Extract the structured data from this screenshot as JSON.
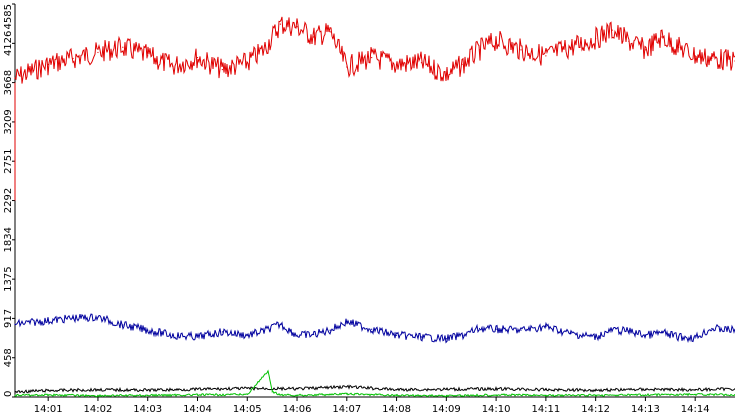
{
  "chart_data": {
    "type": "line",
    "title": "",
    "xlabel": "",
    "ylabel": "",
    "ylim": [
      0,
      4585
    ],
    "yticks": [
      "0",
      "458",
      "917",
      "1375",
      "1834",
      "2292",
      "2751",
      "3209",
      "3668",
      "4126",
      "4585"
    ],
    "xticks": [
      "14:01",
      "14:02",
      "14:03",
      "14:04",
      "14:05",
      "14:06",
      "14:07",
      "14:08",
      "14:09",
      "14:10",
      "14:11",
      "14:12",
      "14:13",
      "14:14"
    ],
    "xrange_minutes": [
      "14:00:20",
      "14:14:48"
    ],
    "grid": false,
    "legend": "none",
    "series": [
      {
        "color": "#e00000",
        "x": [
          "14:00:20",
          "14:01:00",
          "14:01:30",
          "14:02:00",
          "14:02:30",
          "14:03:00",
          "14:03:30",
          "14:04:00",
          "14:04:30",
          "14:05:00",
          "14:05:20",
          "14:05:40",
          "14:06:00",
          "14:06:20",
          "14:06:40",
          "14:07:00",
          "14:07:30",
          "14:08:00",
          "14:08:30",
          "14:09:00",
          "14:09:20",
          "14:09:40",
          "14:10:00",
          "14:10:30",
          "14:11:00",
          "14:11:30",
          "14:12:00",
          "14:12:20",
          "14:12:40",
          "14:13:00",
          "14:13:20",
          "14:13:40",
          "14:14:00",
          "14:14:20",
          "14:14:48"
        ],
        "values": [
          3720,
          3880,
          3950,
          4020,
          4080,
          3980,
          3860,
          3960,
          3820,
          3900,
          4050,
          4350,
          4320,
          4200,
          4260,
          3850,
          3960,
          3880,
          3900,
          3760,
          3880,
          4050,
          4160,
          4050,
          3980,
          4080,
          4180,
          4280,
          4150,
          4050,
          4200,
          4080,
          3980,
          3950,
          3920
        ]
      },
      {
        "color": "#00009e",
        "x": [
          "14:00:20",
          "14:01:00",
          "14:01:30",
          "14:02:00",
          "14:02:30",
          "14:03:00",
          "14:03:30",
          "14:04:00",
          "14:04:30",
          "14:05:00",
          "14:05:20",
          "14:05:40",
          "14:06:00",
          "14:06:20",
          "14:06:40",
          "14:07:00",
          "14:07:30",
          "14:08:00",
          "14:08:30",
          "14:09:00",
          "14:09:20",
          "14:09:40",
          "14:10:00",
          "14:10:30",
          "14:11:00",
          "14:11:30",
          "14:12:00",
          "14:12:20",
          "14:12:40",
          "14:13:00",
          "14:13:20",
          "14:13:40",
          "14:14:00",
          "14:14:20",
          "14:14:48"
        ],
        "values": [
          850,
          890,
          920,
          930,
          840,
          780,
          720,
          700,
          760,
          720,
          770,
          850,
          720,
          730,
          780,
          880,
          790,
          720,
          700,
          680,
          720,
          800,
          790,
          780,
          820,
          740,
          700,
          780,
          770,
          720,
          750,
          700,
          690,
          800,
          780
        ]
      },
      {
        "color": "#000000",
        "x": [
          "14:00:20",
          "14:01:00",
          "14:02:00",
          "14:03:00",
          "14:04:00",
          "14:05:00",
          "14:06:00",
          "14:07:00",
          "14:08:00",
          "14:09:00",
          "14:10:00",
          "14:11:00",
          "14:12:00",
          "14:13:00",
          "14:14:00",
          "14:14:48"
        ],
        "values": [
          60,
          75,
          85,
          80,
          90,
          100,
          95,
          120,
          85,
          90,
          95,
          85,
          80,
          90,
          85,
          95
        ]
      },
      {
        "color": "#00c000",
        "x": [
          "14:00:20",
          "14:01:00",
          "14:02:00",
          "14:03:00",
          "14:04:00",
          "14:05:00",
          "14:05:25",
          "14:05:30",
          "14:05:40",
          "14:06:00",
          "14:07:00",
          "14:08:00",
          "14:09:00",
          "14:10:00",
          "14:11:00",
          "14:12:00",
          "14:13:00",
          "14:14:00",
          "14:14:48"
        ],
        "values": [
          20,
          25,
          15,
          20,
          25,
          30,
          300,
          60,
          25,
          20,
          35,
          20,
          15,
          25,
          20,
          20,
          25,
          30,
          25
        ]
      }
    ]
  }
}
